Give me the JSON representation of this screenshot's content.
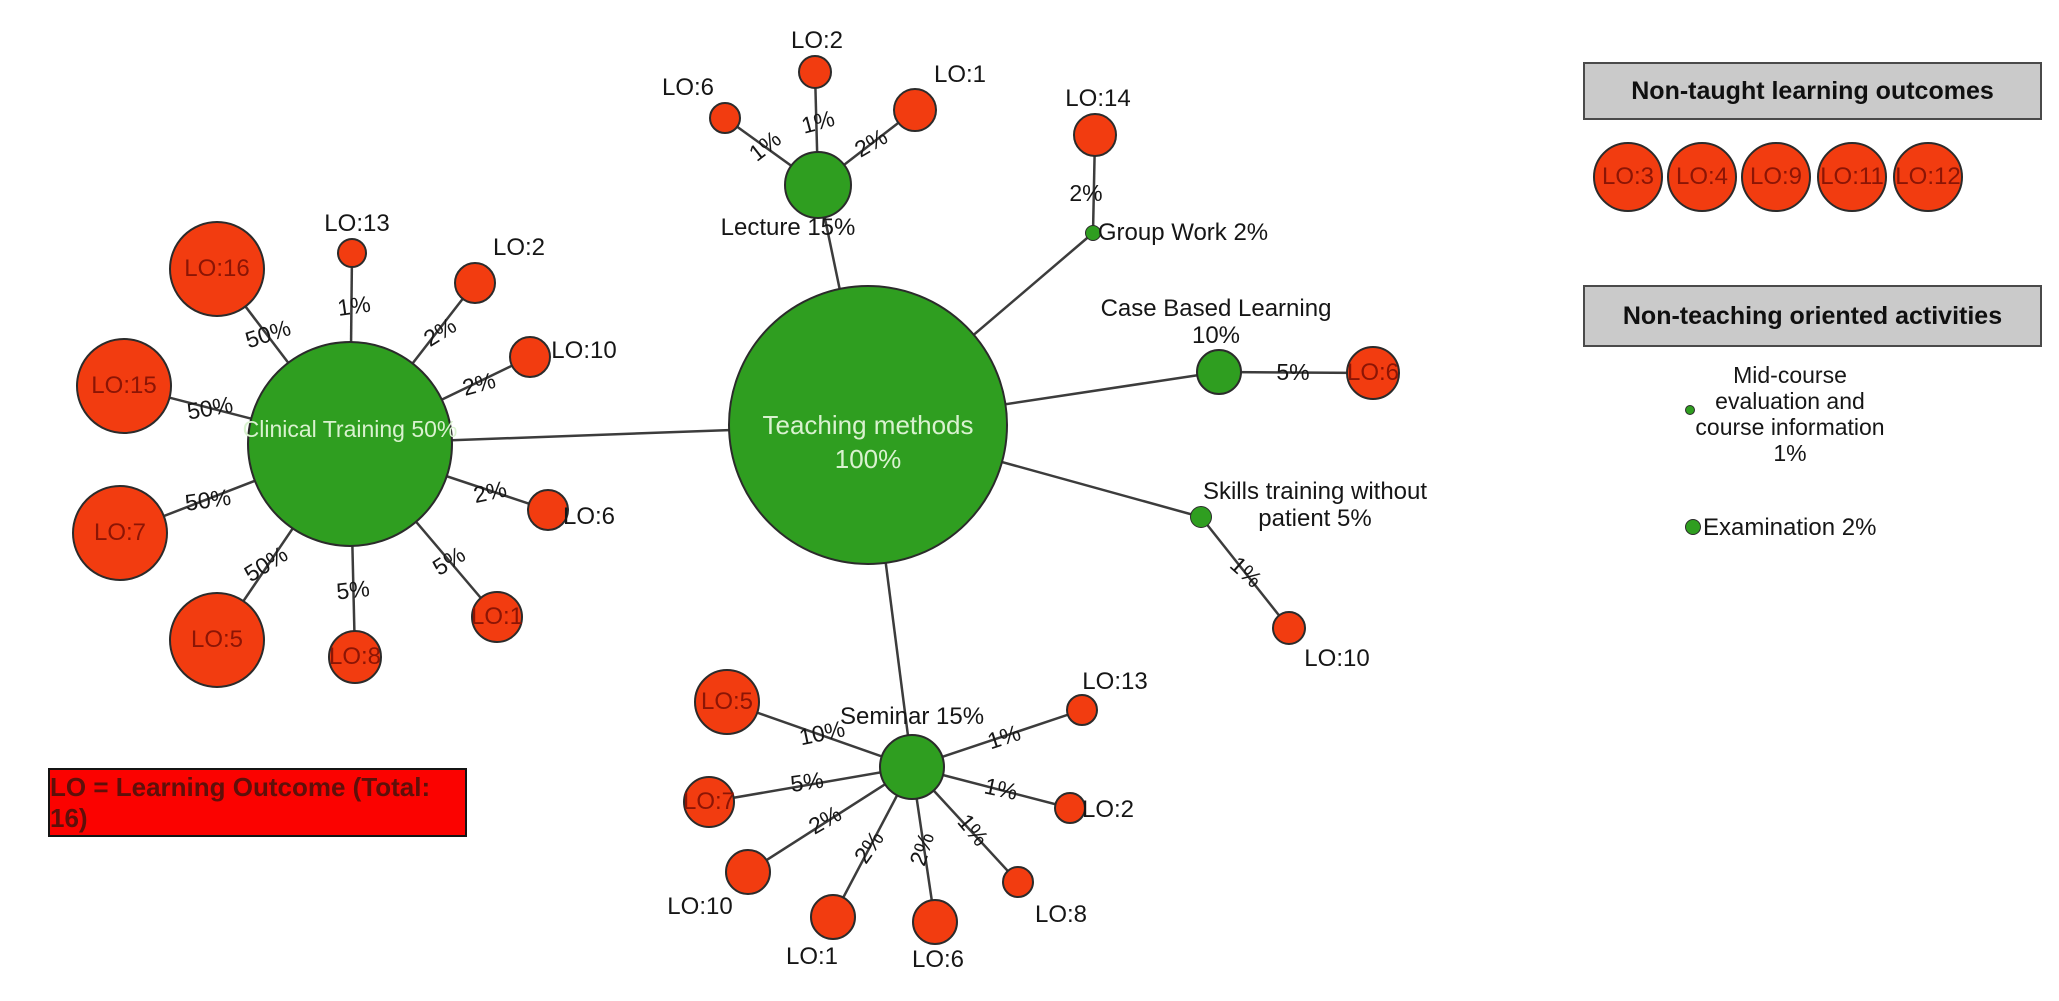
{
  "colors": {
    "method_green": "#2F9E20",
    "outcome_red": "#F23C10",
    "lo_text": "#8B1505",
    "node_text_light": "#D9F2CF",
    "header_bg": "#CACACA",
    "note_bg": "#FB0200",
    "note_text": "#5E100A",
    "edge_line": "#3C3C3C"
  },
  "diagram": {
    "root": {
      "id": "teaching-methods",
      "label_lines": [
        "Teaching methods",
        "100%"
      ]
    },
    "methods": [
      {
        "id": "lecture",
        "label": "Lecture 15%",
        "satellites": [
          {
            "id": "lecture-lo6",
            "label": "LO:6",
            "percent": "1%"
          },
          {
            "id": "lecture-lo2",
            "label": "LO:2",
            "percent": "1%"
          },
          {
            "id": "lecture-lo1",
            "label": "LO:1",
            "percent": "2%"
          }
        ]
      },
      {
        "id": "group-work",
        "label": "Group Work 2%",
        "satellites": [
          {
            "id": "groupwork-lo14",
            "label": "LO:14",
            "percent": "2%"
          }
        ]
      },
      {
        "id": "case-based",
        "label_lines": [
          "Case Based Learning",
          "10%"
        ],
        "satellites": [
          {
            "id": "casebased-lo6",
            "label": "LO:6",
            "percent": "5%"
          }
        ]
      },
      {
        "id": "skills",
        "label_lines": [
          "Skills training without",
          "patient 5%"
        ],
        "satellites": [
          {
            "id": "skills-lo10",
            "label": "LO:10",
            "percent": "1%"
          }
        ]
      },
      {
        "id": "clinical",
        "label": "Clinical Training 50%",
        "satellites": [
          {
            "id": "clinical-lo16",
            "label": "LO:16",
            "percent": "50%"
          },
          {
            "id": "clinical-lo13",
            "label": "LO:13",
            "percent": "1%"
          },
          {
            "id": "clinical-lo2",
            "label": "LO:2",
            "percent": "2%"
          },
          {
            "id": "clinical-lo10",
            "label": "LO:10",
            "percent": "2%"
          },
          {
            "id": "clinical-lo6",
            "label": "LO:6",
            "percent": "2%"
          },
          {
            "id": "clinical-lo1",
            "label": "LO:1",
            "percent": "5%"
          },
          {
            "id": "clinical-lo8",
            "label": "LO:8",
            "percent": "5%"
          },
          {
            "id": "clinical-lo5",
            "label": "LO:5",
            "percent": "50%"
          },
          {
            "id": "clinical-lo7",
            "label": "LO:7",
            "percent": "50%"
          },
          {
            "id": "clinical-lo15",
            "label": "LO:15",
            "percent": "50%"
          }
        ]
      },
      {
        "id": "seminar",
        "label": "Seminar 15%",
        "satellites": [
          {
            "id": "seminar-lo5",
            "label": "LO:5",
            "percent": "10%"
          },
          {
            "id": "seminar-lo7",
            "label": "LO:7",
            "percent": "5%"
          },
          {
            "id": "seminar-lo10",
            "label": "LO:10",
            "percent": "2%"
          },
          {
            "id": "seminar-lo1",
            "label": "LO:1",
            "percent": "2%"
          },
          {
            "id": "seminar-lo6",
            "label": "LO:6",
            "percent": "2%"
          },
          {
            "id": "seminar-lo8",
            "label": "LO:8",
            "percent": "1%"
          },
          {
            "id": "seminar-lo2",
            "label": "LO:2",
            "percent": "1%"
          },
          {
            "id": "seminar-lo13",
            "label": "LO:13",
            "percent": "1%"
          }
        ]
      }
    ]
  },
  "legend": {
    "non_taught": {
      "title": "Non-taught learning outcomes",
      "items": [
        "LO:3",
        "LO:4",
        "LO:9",
        "LO:11",
        "LO:12"
      ]
    },
    "non_teaching": {
      "title": "Non-teaching oriented activities",
      "items": [
        {
          "id": "midcourse",
          "lines": [
            "Mid-course",
            "evaluation and",
            "course information",
            "1%"
          ]
        },
        {
          "id": "examination",
          "lines": [
            "Examination 2%"
          ]
        }
      ]
    }
  },
  "note_box": {
    "label": "LO = Learning Outcome (Total: 16)"
  }
}
